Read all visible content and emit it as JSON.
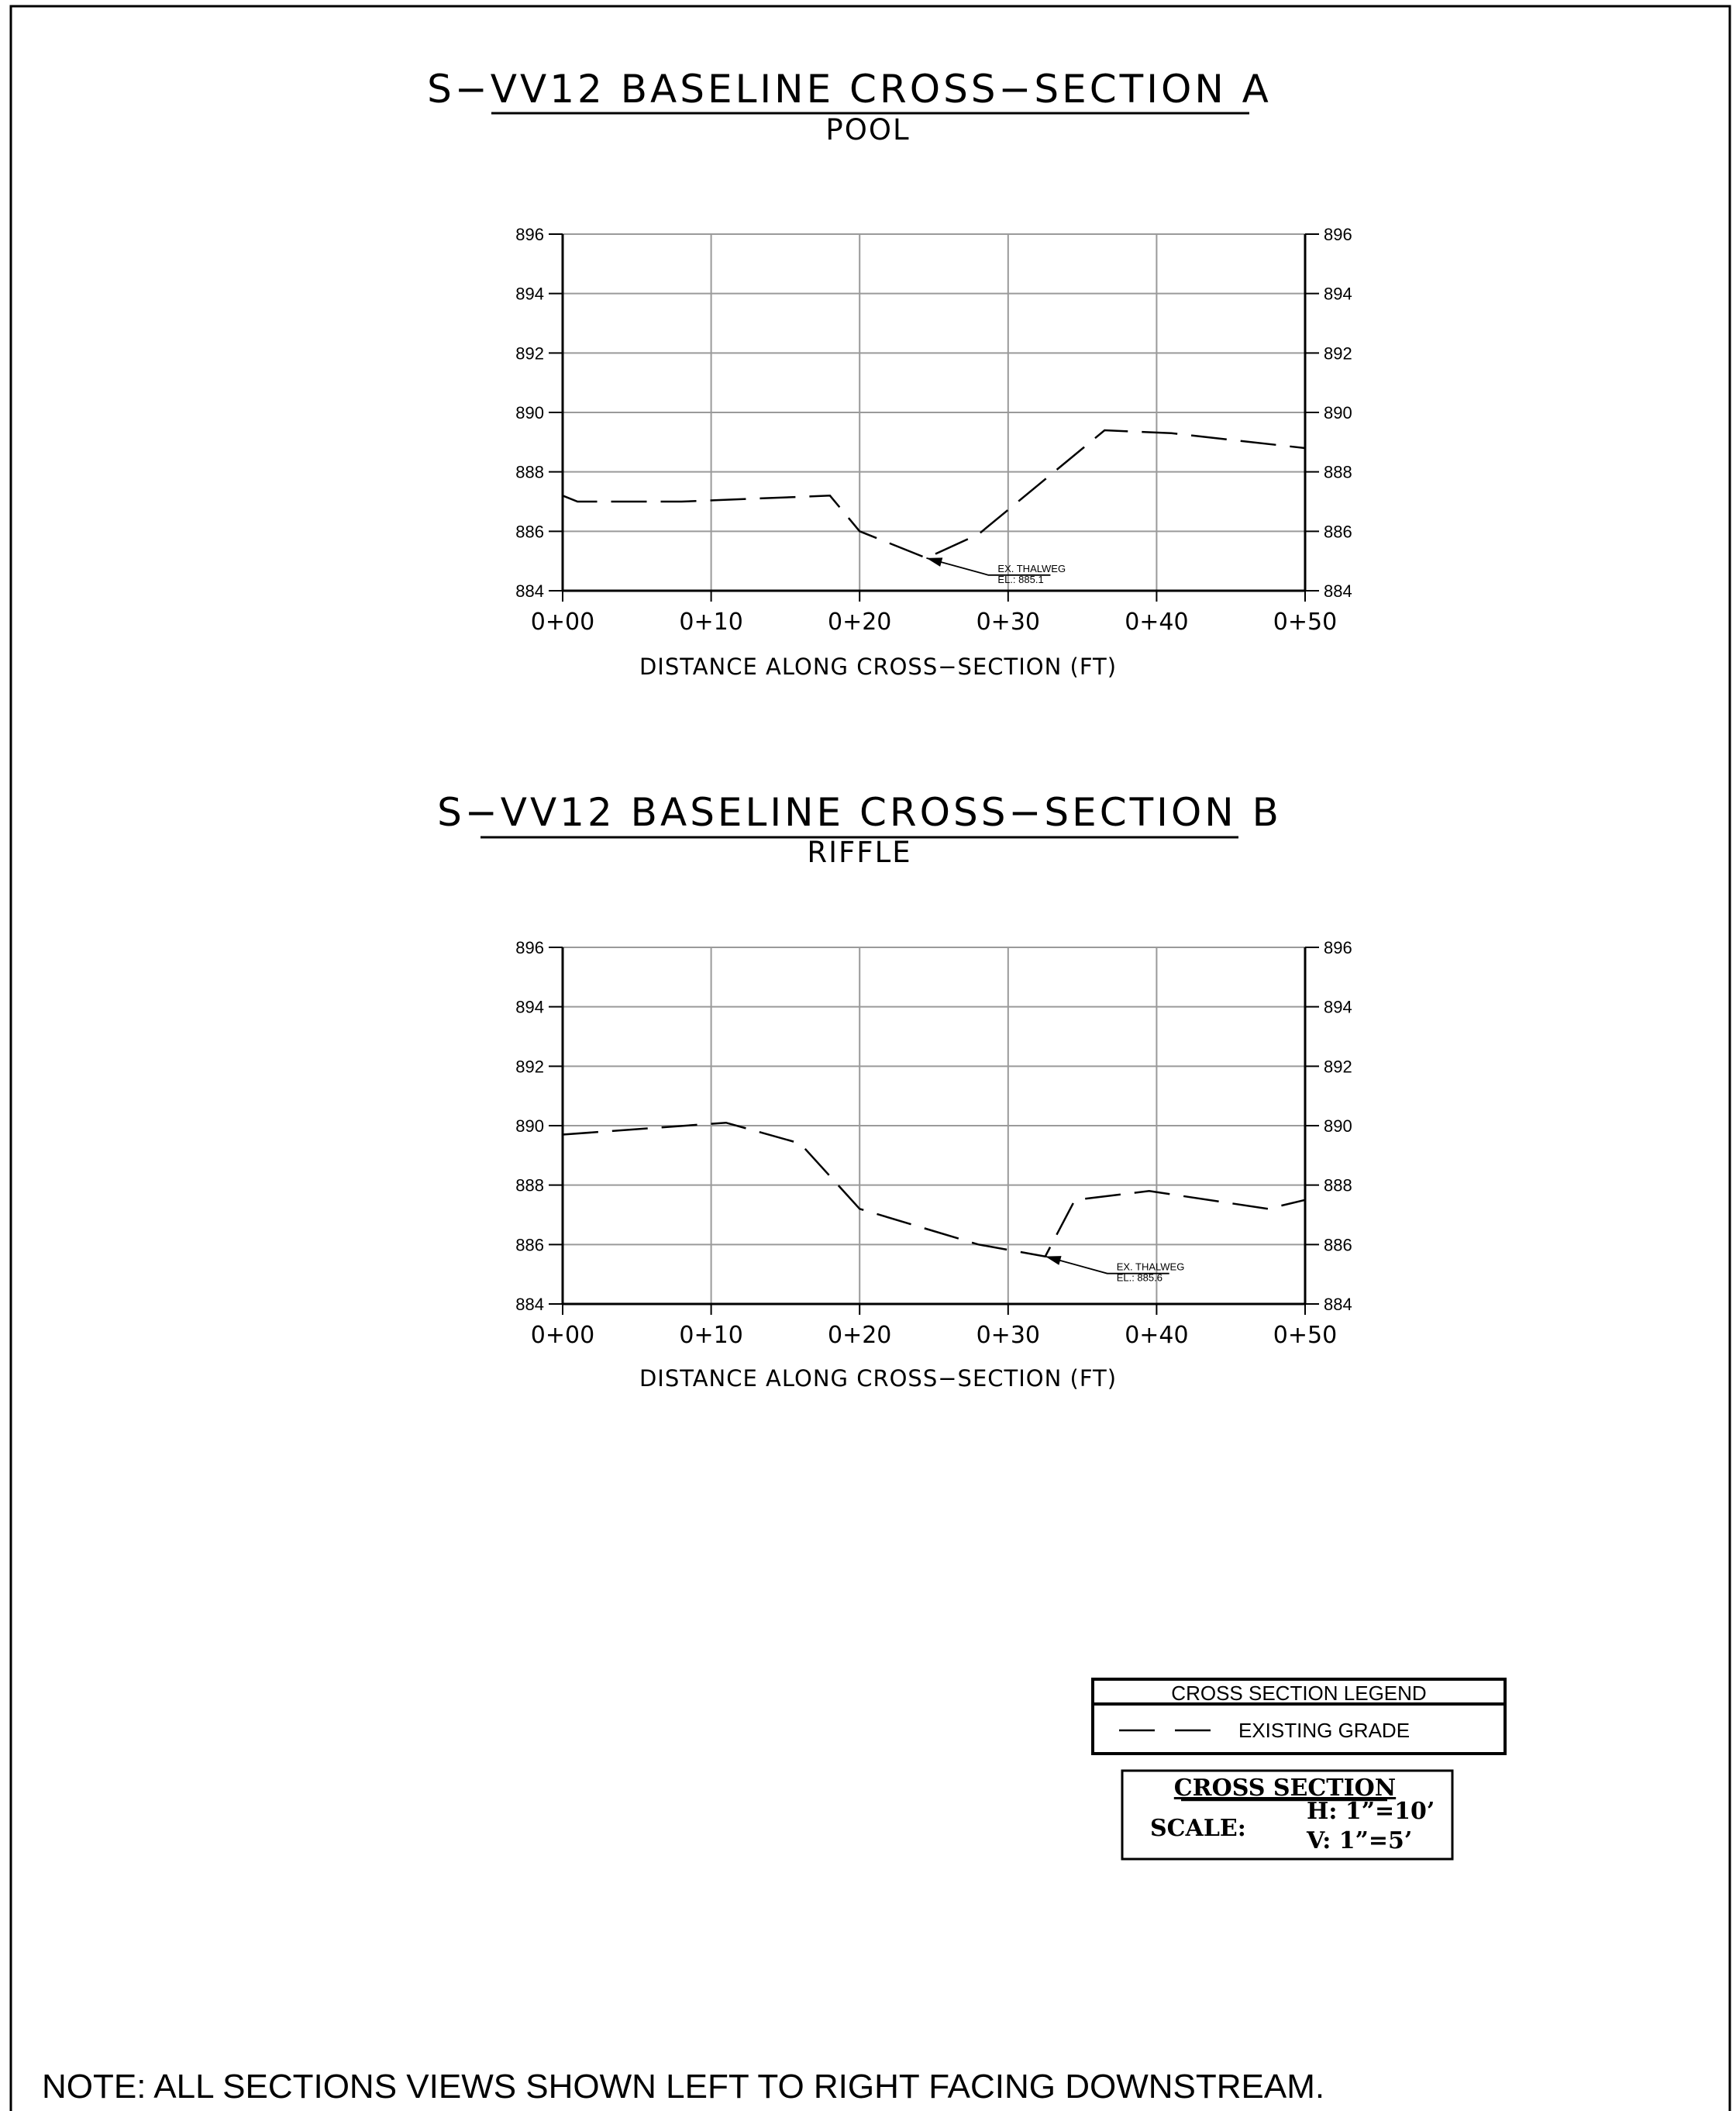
{
  "note": "NOTE: ALL SECTIONS VIEWS SHOWN LEFT TO RIGHT FACING DOWNSTREAM.",
  "legend": {
    "title": "CROSS SECTION LEGEND",
    "item_label": "EXISTING GRADE"
  },
  "scale_box": {
    "title": "CROSS SECTION",
    "label": "SCALE:",
    "horizontal": "H:  1”=10’",
    "vertical": "V:  1”=5’"
  },
  "chart_data": [
    {
      "type": "line",
      "title": "S−VV12  BASELINE  CROSS−SECTION  A",
      "subtitle": "POOL",
      "xlabel": "DISTANCE  ALONG  CROSS−SECTION  (FT)",
      "ylabel": "",
      "xlim": [
        0,
        50
      ],
      "ylim": [
        884,
        896
      ],
      "xticks": [
        0,
        10,
        20,
        30,
        40,
        50
      ],
      "xtick_labels": [
        "0+00",
        "0+10",
        "0+20",
        "0+30",
        "0+40",
        "0+50"
      ],
      "yticks": [
        884,
        886,
        888,
        890,
        892,
        894,
        896
      ],
      "ytick_labels": [
        "884",
        "886",
        "888",
        "890",
        "892",
        "894",
        "896"
      ],
      "grid": true,
      "series": [
        {
          "name": "",
          "x": [
            0,
            1.0,
            8,
            18.0,
            20.0,
            24.5,
            28.0,
            36.5,
            41.0,
            50
          ],
          "y": [
            887.2,
            887.0,
            887.0,
            887.2,
            886.0,
            885.1,
            885.9,
            889.4,
            889.3,
            888.8
          ]
        }
      ],
      "annotation": {
        "lines": [
          "EX. THALWEG",
          "EL.: 885.1"
        ],
        "x": 24.5,
        "y": 885.1
      }
    },
    {
      "type": "line",
      "title": "S−VV12  BASELINE  CROSS−SECTION  B",
      "subtitle": "RIFFLE",
      "xlabel": "DISTANCE  ALONG  CROSS−SECTION  (FT)",
      "ylabel": "",
      "xlim": [
        0,
        50
      ],
      "ylim": [
        884,
        896
      ],
      "xticks": [
        0,
        10,
        20,
        30,
        40,
        50
      ],
      "xtick_labels": [
        "0+00",
        "0+10",
        "0+20",
        "0+30",
        "0+40",
        "0+50"
      ],
      "yticks": [
        884,
        886,
        888,
        890,
        892,
        894,
        896
      ],
      "ytick_labels": [
        "884",
        "886",
        "888",
        "890",
        "892",
        "894",
        "896"
      ],
      "grid": true,
      "series": [
        {
          "name": "",
          "x": [
            0,
            11.0,
            16.0,
            20.0,
            28.0,
            32.5,
            34.5,
            39.5,
            47.5,
            50
          ],
          "y": [
            889.7,
            890.1,
            889.4,
            887.2,
            886.0,
            885.6,
            887.5,
            887.8,
            887.2,
            887.5
          ]
        }
      ],
      "annotation": {
        "lines": [
          "EX. THALWEG",
          "EL.: 885.6"
        ],
        "x": 32.5,
        "y": 885.6
      }
    }
  ]
}
